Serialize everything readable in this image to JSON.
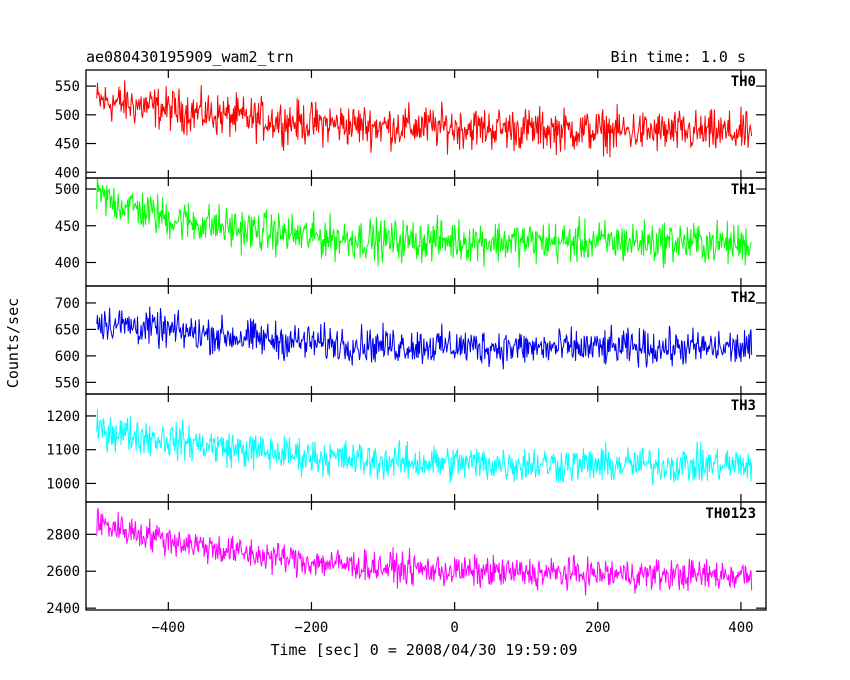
{
  "header": {
    "title": "ae080430195909_wam2_trn",
    "bin_time": "Bin time: 1.0 s"
  },
  "chart_data": {
    "type": "line",
    "title": "ae080430195909_wam2_trn",
    "xlabel": "Time [sec] 0 = 2008/04/30 19:59:09",
    "ylabel": "Counts/sec",
    "xlim": [
      -515,
      435
    ],
    "x_ticks": [
      -400,
      -200,
      0,
      200,
      400
    ],
    "x_tick_labels": [
      "−400",
      "−200",
      "0",
      "200",
      "400"
    ],
    "x_range": [
      -500,
      415
    ],
    "grid": false,
    "series": [
      {
        "name": "TH0",
        "color": "#ff0000",
        "ylim": [
          390,
          578
        ],
        "y_ticks": [
          400,
          450,
          500,
          550
        ],
        "trend": [
          [
            -500,
            525
          ],
          [
            -400,
            510
          ],
          [
            -300,
            495
          ],
          [
            -200,
            485
          ],
          [
            -100,
            480
          ],
          [
            0,
            478
          ],
          [
            100,
            475
          ],
          [
            200,
            472
          ],
          [
            300,
            470
          ],
          [
            415,
            468
          ]
        ],
        "noise": 26
      },
      {
        "name": "TH1",
        "color": "#00ff00",
        "ylim": [
          368,
          515
        ],
        "y_ticks": [
          400,
          450,
          500
        ],
        "trend": [
          [
            -500,
            490
          ],
          [
            -400,
            460
          ],
          [
            -300,
            445
          ],
          [
            -200,
            435
          ],
          [
            -100,
            430
          ],
          [
            0,
            430
          ],
          [
            100,
            428
          ],
          [
            200,
            428
          ],
          [
            300,
            428
          ],
          [
            415,
            425
          ]
        ],
        "noise": 20
      },
      {
        "name": "TH2",
        "color": "#0000ee",
        "ylim": [
          528,
          732
        ],
        "y_ticks": [
          550,
          600,
          650,
          700
        ],
        "trend": [
          [
            -500,
            665
          ],
          [
            -400,
            648
          ],
          [
            -300,
            635
          ],
          [
            -200,
            625
          ],
          [
            -100,
            620
          ],
          [
            0,
            618
          ],
          [
            100,
            615
          ],
          [
            200,
            615
          ],
          [
            300,
            615
          ],
          [
            415,
            615
          ]
        ],
        "noise": 24
      },
      {
        "name": "TH3",
        "color": "#00ffff",
        "ylim": [
          945,
          1265
        ],
        "y_ticks": [
          1000,
          1100,
          1200
        ],
        "trend": [
          [
            -500,
            1160
          ],
          [
            -400,
            1130
          ],
          [
            -300,
            1100
          ],
          [
            -200,
            1080
          ],
          [
            -100,
            1065
          ],
          [
            0,
            1060
          ],
          [
            100,
            1058
          ],
          [
            200,
            1055
          ],
          [
            300,
            1055
          ],
          [
            415,
            1055
          ]
        ],
        "noise": 38
      },
      {
        "name": "TH0123",
        "color": "#ff00ff",
        "ylim": [
          2390,
          2975
        ],
        "y_ticks": [
          2400,
          2600,
          2800
        ],
        "trend": [
          [
            -500,
            2860
          ],
          [
            -400,
            2770
          ],
          [
            -300,
            2700
          ],
          [
            -200,
            2650
          ],
          [
            -100,
            2620
          ],
          [
            0,
            2600
          ],
          [
            100,
            2590
          ],
          [
            200,
            2585
          ],
          [
            300,
            2580
          ],
          [
            415,
            2580
          ]
        ],
        "noise": 60
      }
    ]
  }
}
